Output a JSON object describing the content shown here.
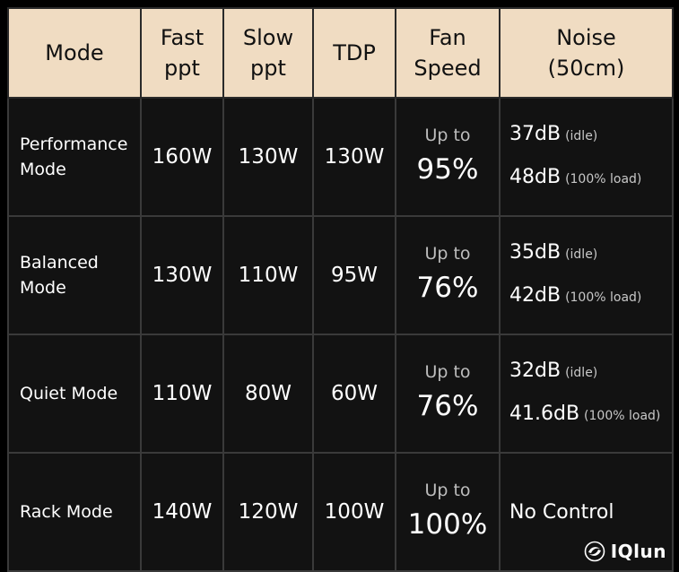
{
  "header": {
    "mode": [
      "Mode"
    ],
    "fast_ppt": [
      "Fast",
      "ppt"
    ],
    "slow_ppt": [
      "Slow",
      "ppt"
    ],
    "tdp": [
      "TDP"
    ],
    "fan_speed": [
      "Fan",
      "Speed"
    ],
    "noise": [
      "Noise",
      "(50cm)"
    ]
  },
  "rows": [
    {
      "mode_lines": [
        "Performance",
        "Mode"
      ],
      "fast_ppt": "160W",
      "slow_ppt": "130W",
      "tdp": "130W",
      "fan_prefix": "Up to",
      "fan_value": "95%",
      "noise": [
        {
          "value": "37dB",
          "note": "(idle)"
        },
        {
          "value": "48dB",
          "note": "(100% load)"
        }
      ]
    },
    {
      "mode_lines": [
        "Balanced",
        "Mode"
      ],
      "fast_ppt": "130W",
      "slow_ppt": "110W",
      "tdp": "95W",
      "fan_prefix": "Up to",
      "fan_value": "76%",
      "noise": [
        {
          "value": "35dB",
          "note": "(idle)"
        },
        {
          "value": "42dB",
          "note": "(100% load)"
        }
      ]
    },
    {
      "mode_lines": [
        "Quiet Mode"
      ],
      "fast_ppt": "110W",
      "slow_ppt": "80W",
      "tdp": "60W",
      "fan_prefix": "Up to",
      "fan_value": "76%",
      "noise": [
        {
          "value": "32dB",
          "note": "(idle)"
        },
        {
          "value": "41.6dB",
          "note": "(100% load)"
        }
      ]
    },
    {
      "mode_lines": [
        "Rack Mode"
      ],
      "fast_ppt": "140W",
      "slow_ppt": "120W",
      "tdp": "100W",
      "fan_prefix": "Up to",
      "fan_value": "100%",
      "noise_text": "No Control"
    }
  ],
  "watermark": {
    "text": "IQlun",
    "icon": "iqlun-logo-icon"
  },
  "colors": {
    "header_bg": "#f0dcc2",
    "cell_bg": "#121212",
    "page_bg": "#000000"
  }
}
